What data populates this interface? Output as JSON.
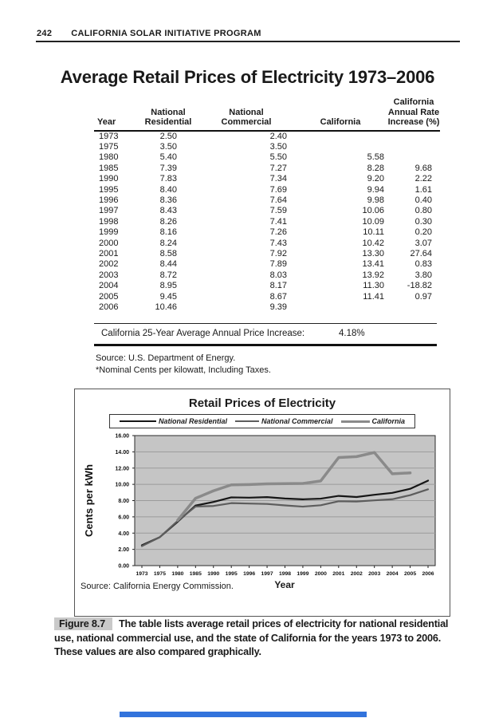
{
  "page": {
    "page_number": "242",
    "running_head": "CALIFORNIA SOLAR INITIATIVE PROGRAM",
    "title": "Average Retail Prices of Electricity 1973–2006"
  },
  "table": {
    "columns": [
      [
        "Year"
      ],
      [
        "National",
        "Residential"
      ],
      [
        "National",
        "Commercial"
      ],
      [
        "California"
      ],
      [
        "California",
        "Annual Rate",
        "Increase (%)"
      ]
    ],
    "rows": [
      [
        "1973",
        "2.50",
        "2.40",
        "",
        ""
      ],
      [
        "1975",
        "3.50",
        "3.50",
        "",
        ""
      ],
      [
        "1980",
        "5.40",
        "5.50",
        "5.58",
        ""
      ],
      [
        "1985",
        "7.39",
        "7.27",
        "8.28",
        "9.68"
      ],
      [
        "1990",
        "7.83",
        "7.34",
        "9.20",
        "2.22"
      ],
      [
        "1995",
        "8.40",
        "7.69",
        "9.94",
        "1.61"
      ],
      [
        "1996",
        "8.36",
        "7.64",
        "9.98",
        "0.40"
      ],
      [
        "1997",
        "8.43",
        "7.59",
        "10.06",
        "0.80"
      ],
      [
        "1998",
        "8.26",
        "7.41",
        "10.09",
        "0.30"
      ],
      [
        "1999",
        "8.16",
        "7.26",
        "10.11",
        "0.20"
      ],
      [
        "2000",
        "8.24",
        "7.43",
        "10.42",
        "3.07"
      ],
      [
        "2001",
        "8.58",
        "7.92",
        "13.30",
        "27.64"
      ],
      [
        "2002",
        "8.44",
        "7.89",
        "13.41",
        "0.83"
      ],
      [
        "2003",
        "8.72",
        "8.03",
        "13.92",
        "3.80"
      ],
      [
        "2004",
        "8.95",
        "8.17",
        "11.30",
        "-18.82"
      ],
      [
        "2005",
        "9.45",
        "8.67",
        "11.41",
        "0.97"
      ],
      [
        "2006",
        "10.46",
        "9.39",
        "",
        ""
      ]
    ],
    "summary_label": "California 25-Year Average Annual Price Increase:",
    "summary_value": "4.18%",
    "source": "Source: U.S. Department of Energy.",
    "footnote": "*Nominal Cents per kilowatt, Including Taxes."
  },
  "chart_data": {
    "type": "line",
    "title": "Retail Prices of Electricity",
    "xlabel": "Year",
    "ylabel": "Cents per kWh",
    "source": "Source: California Energy Commission.",
    "categories": [
      "1973",
      "1975",
      "1980",
      "1985",
      "1990",
      "1995",
      "1996",
      "1997",
      "1998",
      "1999",
      "2000",
      "2001",
      "2002",
      "2003",
      "2004",
      "2005",
      "2006"
    ],
    "ylim": [
      0,
      16
    ],
    "ytick_step": 2,
    "grid": true,
    "legend_position": "top",
    "series": [
      {
        "name": "National Residential",
        "color": "#161616",
        "width": 2.2,
        "values": [
          2.5,
          3.5,
          5.4,
          7.39,
          7.83,
          8.4,
          8.36,
          8.43,
          8.26,
          8.16,
          8.24,
          8.58,
          8.44,
          8.72,
          8.95,
          9.45,
          10.46
        ]
      },
      {
        "name": "National Commercial",
        "color": "#5d5d5d",
        "width": 2.2,
        "values": [
          2.4,
          3.5,
          5.5,
          7.27,
          7.34,
          7.69,
          7.64,
          7.59,
          7.41,
          7.26,
          7.43,
          7.92,
          7.89,
          8.03,
          8.17,
          8.67,
          9.39
        ]
      },
      {
        "name": "California",
        "color": "#8a8a8a",
        "width": 3.5,
        "values": [
          null,
          null,
          5.58,
          8.28,
          9.2,
          9.94,
          9.98,
          10.06,
          10.09,
          10.11,
          10.42,
          13.3,
          13.41,
          13.92,
          11.3,
          11.41,
          null
        ]
      }
    ],
    "plot_bg_color": "#c5c5c5",
    "grid_color": "#9b9b9b"
  },
  "caption": {
    "label": "Figure 8.7",
    "text": "The table lists average retail prices of electricity for national residential use, national commercial use, and the state of California for the years 1973 to 2006. These values are also compared graphically."
  },
  "decor": {
    "bottom_bar_color": "#3273dc"
  }
}
